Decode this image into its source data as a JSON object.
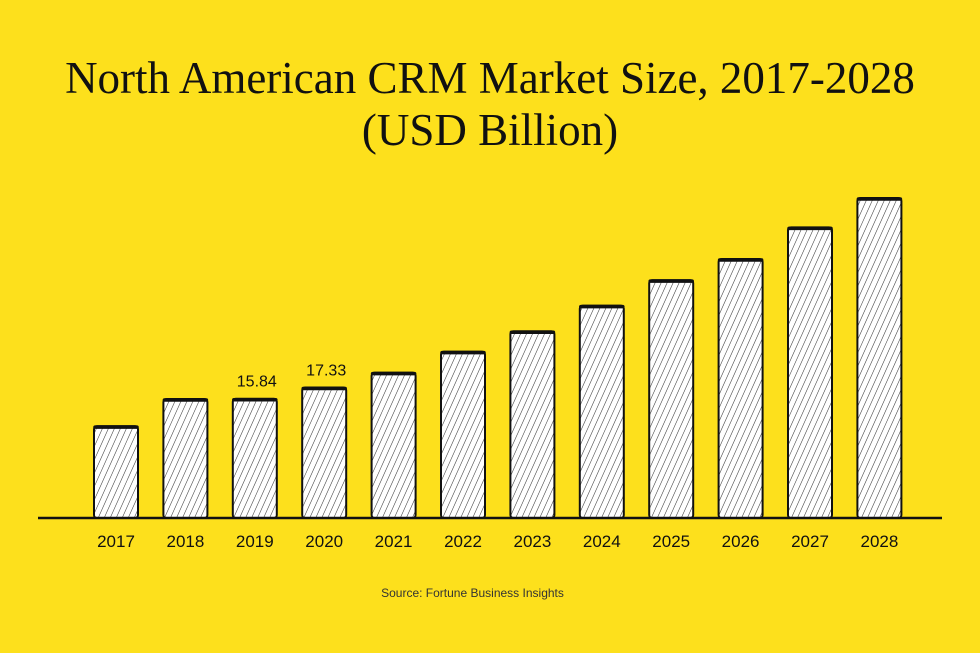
{
  "title_line1": "North American CRM Market Size, 2017-2028",
  "title_line2": "(USD Billion)",
  "source": "Source: Fortune Business Insights",
  "colors": {
    "background": "#fde01c",
    "bar_fill": "#ffffff",
    "ink": "#111111"
  },
  "chart_data": {
    "type": "bar",
    "title": "North American CRM Market Size, 2017-2028 (USD Billion)",
    "categories": [
      "2017",
      "2018",
      "2019",
      "2020",
      "2021",
      "2022",
      "2023",
      "2024",
      "2025",
      "2026",
      "2027",
      "2028"
    ],
    "values": [
      12.2,
      15.8,
      15.84,
      17.33,
      19.3,
      22.1,
      24.8,
      28.2,
      31.6,
      34.4,
      38.6,
      42.5
    ],
    "data_labels": [
      null,
      null,
      "15.84",
      "17.33",
      null,
      null,
      null,
      null,
      null,
      null,
      null,
      null
    ],
    "ylim": [
      0,
      42.5
    ],
    "grid": false,
    "legend": "none"
  }
}
